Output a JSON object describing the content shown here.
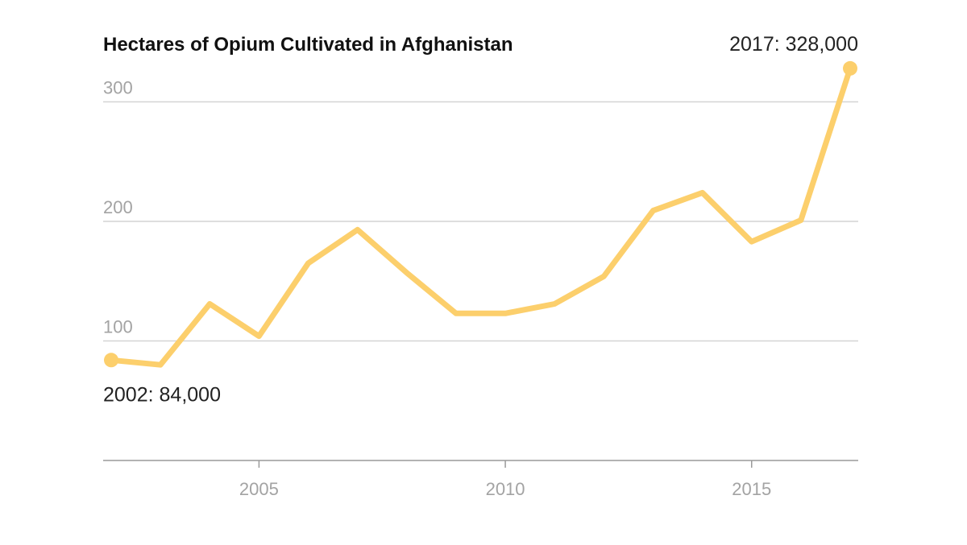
{
  "chart_data": {
    "type": "line",
    "title": "Hectares of Opium Cultivated in Afghanistan",
    "xlabel": "",
    "ylabel": "",
    "x": [
      2002,
      2003,
      2004,
      2005,
      2006,
      2007,
      2008,
      2009,
      2010,
      2011,
      2012,
      2013,
      2014,
      2015,
      2016,
      2017
    ],
    "series": [
      {
        "values": [
          84,
          80,
          131,
          104,
          165,
          193,
          157,
          123,
          123,
          131,
          154,
          209,
          224,
          183,
          201,
          328
        ],
        "color": "#fccf6c"
      }
    ],
    "xlim": [
      2002,
      2017
    ],
    "ylim": [
      0,
      335
    ],
    "x_ticks": [
      {
        "value": 2005,
        "label": "2005"
      },
      {
        "value": 2010,
        "label": "2010"
      },
      {
        "value": 2015,
        "label": "2015"
      }
    ],
    "y_ticks": [
      {
        "value": 100,
        "label": "100"
      },
      {
        "value": 200,
        "label": "200"
      },
      {
        "value": 300,
        "label": "300"
      }
    ],
    "grid": true,
    "annotations": [
      {
        "x": 2002,
        "y": 84,
        "text": "2002: 84,000",
        "placement": "below"
      },
      {
        "x": 2017,
        "y": 328,
        "text": "2017: 328,000",
        "placement": "above"
      }
    ]
  }
}
